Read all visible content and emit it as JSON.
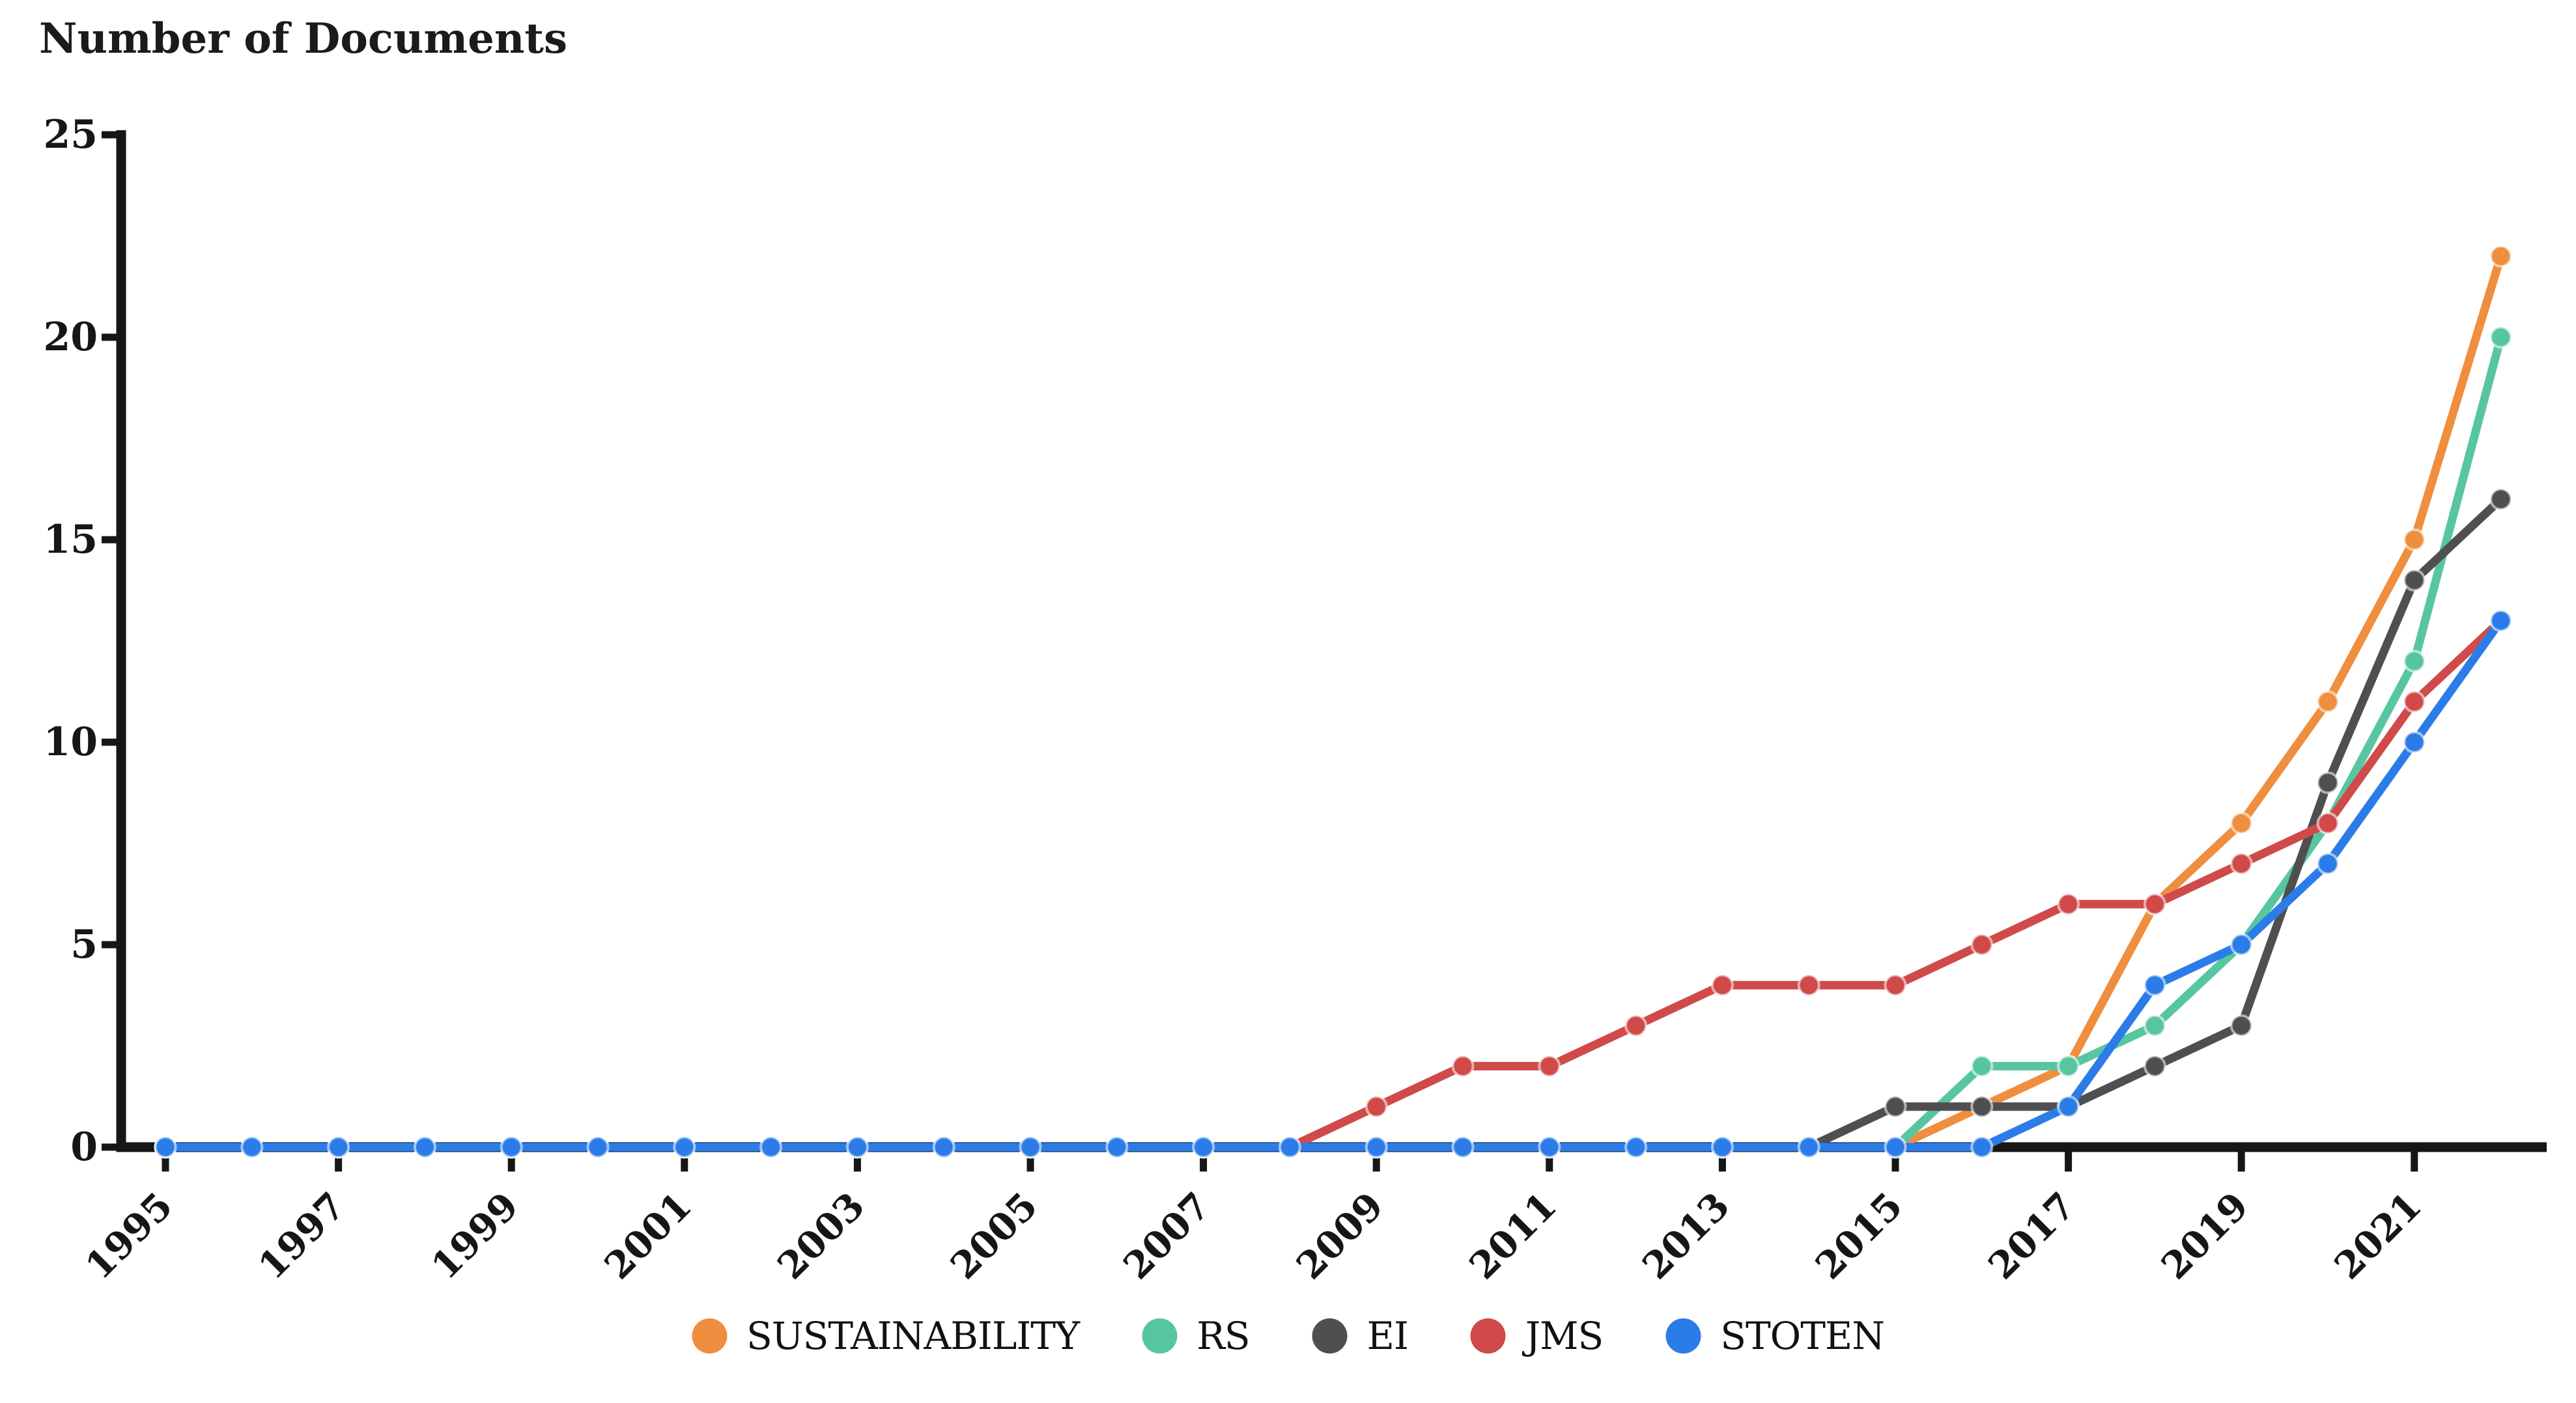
{
  "title": "Number of Documents",
  "axes": {
    "y_tick_labels": [
      "0",
      "5",
      "10",
      "15",
      "20",
      "25"
    ],
    "x_tick_labels": [
      "1995",
      "1997",
      "1999",
      "2001",
      "2003",
      "2005",
      "2007",
      "2009",
      "2011",
      "2013",
      "2015",
      "2017",
      "2019",
      "2021"
    ]
  },
  "colors": {
    "axis": "#161616",
    "sustainability": "#ef8e3f",
    "rs": "#57c6a0",
    "ei": "#4f4f52",
    "jms": "#cf4a49",
    "stoten": "#2b7ce9"
  },
  "chart_data": {
    "type": "line",
    "title": "Number of Documents",
    "xlabel": "",
    "ylabel": "Number of Documents",
    "ylim": [
      0,
      25
    ],
    "y_ticks": [
      0,
      5,
      10,
      15,
      20,
      25
    ],
    "x_tick_years": [
      1995,
      1997,
      1999,
      2001,
      2003,
      2005,
      2007,
      2009,
      2011,
      2013,
      2015,
      2017,
      2019,
      2021
    ],
    "grid": false,
    "legend_position": "bottom",
    "x": [
      1995,
      1996,
      1997,
      1998,
      1999,
      2000,
      2001,
      2002,
      2003,
      2004,
      2005,
      2006,
      2007,
      2008,
      2009,
      2010,
      2011,
      2012,
      2013,
      2014,
      2015,
      2016,
      2017,
      2018,
      2019,
      2020,
      2021,
      2022
    ],
    "series": [
      {
        "name": "SUSTAINABILITY",
        "color": "#ef8e3f",
        "values": [
          0,
          0,
          0,
          0,
          0,
          0,
          0,
          0,
          0,
          0,
          0,
          0,
          0,
          0,
          0,
          0,
          0,
          0,
          0,
          0,
          0,
          1,
          2,
          6,
          8,
          11,
          15,
          22
        ]
      },
      {
        "name": "RS",
        "color": "#57c6a0",
        "values": [
          0,
          0,
          0,
          0,
          0,
          0,
          0,
          0,
          0,
          0,
          0,
          0,
          0,
          0,
          0,
          0,
          0,
          0,
          0,
          0,
          0,
          2,
          2,
          3,
          5,
          8,
          12,
          20
        ]
      },
      {
        "name": "EI",
        "color": "#4f4f52",
        "values": [
          0,
          0,
          0,
          0,
          0,
          0,
          0,
          0,
          0,
          0,
          0,
          0,
          0,
          0,
          0,
          0,
          0,
          0,
          0,
          0,
          1,
          1,
          1,
          2,
          3,
          9,
          14,
          16
        ]
      },
      {
        "name": "JMS",
        "color": "#cf4a49",
        "values": [
          0,
          0,
          0,
          0,
          0,
          0,
          0,
          0,
          0,
          0,
          0,
          0,
          0,
          0,
          1,
          2,
          2,
          3,
          4,
          4,
          4,
          5,
          6,
          6,
          7,
          8,
          11,
          13
        ]
      },
      {
        "name": "STOTEN",
        "color": "#2b7ce9",
        "values": [
          0,
          0,
          0,
          0,
          0,
          0,
          0,
          0,
          0,
          0,
          0,
          0,
          0,
          0,
          0,
          0,
          0,
          0,
          0,
          0,
          0,
          0,
          1,
          4,
          5,
          7,
          10,
          13
        ]
      }
    ]
  }
}
